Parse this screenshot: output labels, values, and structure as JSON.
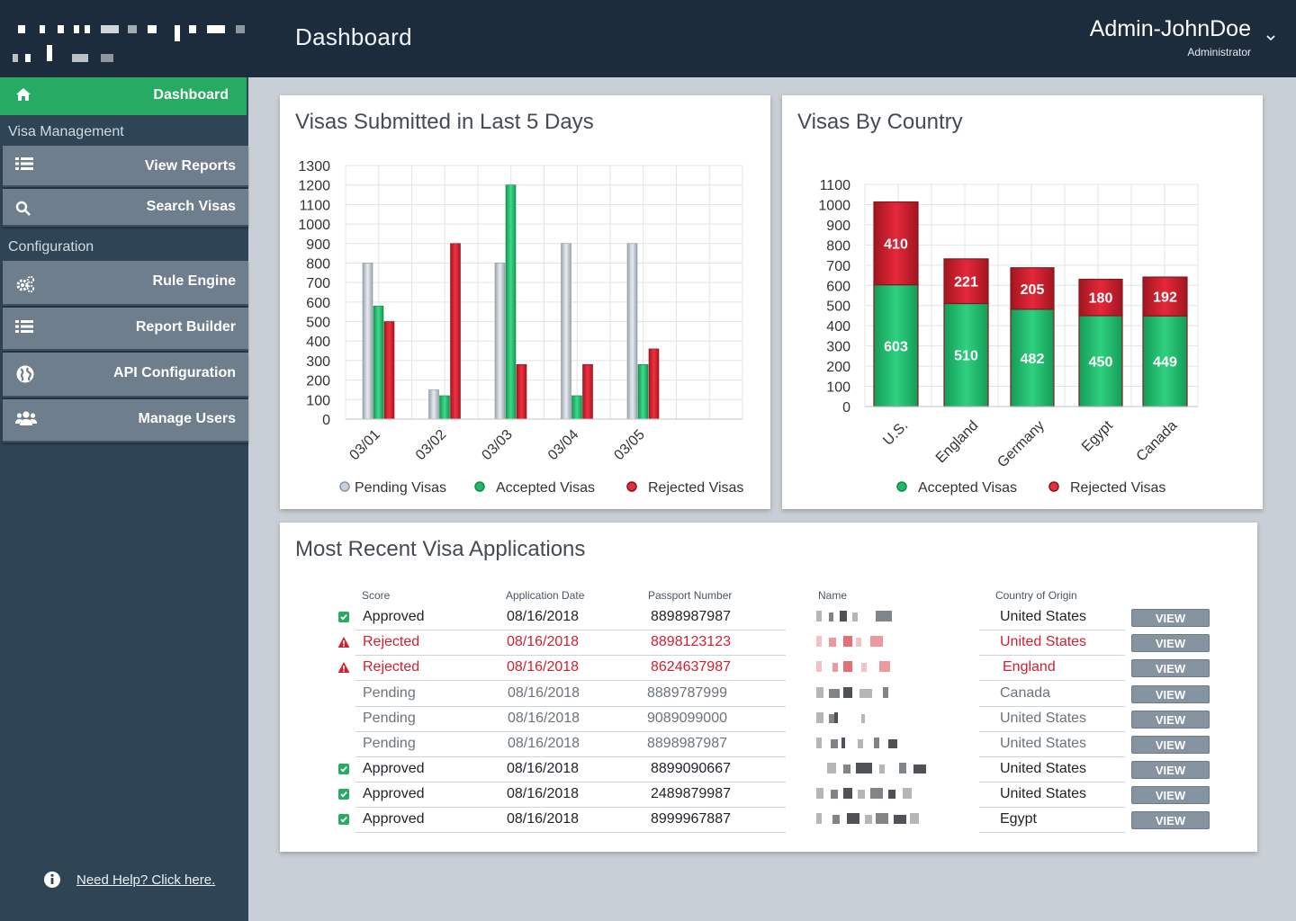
{
  "header": {
    "title": "Dashboard",
    "user_name": "Admin-JohnDoe",
    "user_role": "Administrator"
  },
  "sidebar": {
    "active": {
      "label": "Dashboard",
      "icon": "home-icon"
    },
    "sections": [
      {
        "label": "Visa Management"
      },
      {
        "label": "Configuration"
      }
    ],
    "items": [
      {
        "label": "View Reports",
        "icon": "list-icon"
      },
      {
        "label": "Search Visas",
        "icon": "search-icon"
      },
      {
        "label": "Rule Engine",
        "icon": "gears-icon"
      },
      {
        "label": "Report Builder",
        "icon": "list-icon"
      },
      {
        "label": "API Configuration",
        "icon": "globe-icon"
      },
      {
        "label": "Manage Users",
        "icon": "users-icon"
      }
    ],
    "help": "Need Help? Click here."
  },
  "colors": {
    "pending": "#c9d0d8",
    "accepted": "#22b86b",
    "rejected": "#d3202e",
    "header": "#1c2c3c",
    "sidebar": "#2f4454",
    "active_nav": "#27ab62"
  },
  "chart_data": [
    {
      "type": "bar",
      "title": "Visas Submitted in Last 5 Days",
      "categories": [
        "03/01",
        "03/02",
        "03/03",
        "03/04",
        "03/05"
      ],
      "series": [
        {
          "name": "Pending Visas",
          "values": [
            800,
            150,
            800,
            900,
            900
          ]
        },
        {
          "name": "Accepted Visas",
          "values": [
            580,
            120,
            1200,
            120,
            280
          ]
        },
        {
          "name": "Rejected Visas",
          "values": [
            500,
            900,
            280,
            280,
            360
          ]
        }
      ],
      "ylim": [
        0,
        1300
      ],
      "yticks": [
        0,
        100,
        200,
        300,
        400,
        500,
        600,
        700,
        800,
        900,
        1000,
        1100,
        1200,
        1300
      ],
      "grid": true,
      "legend": "bottom"
    },
    {
      "type": "bar",
      "stacked": true,
      "title": "Visas By Country",
      "categories": [
        "U.S.",
        "England",
        "Germany",
        "Egypt",
        "Canada"
      ],
      "series": [
        {
          "name": "Accepted Visas",
          "values": [
            603,
            510,
            482,
            450,
            449
          ]
        },
        {
          "name": "Rejected Visas",
          "values": [
            410,
            221,
            205,
            180,
            192
          ]
        }
      ],
      "ylim": [
        0,
        1100
      ],
      "yticks": [
        0,
        100,
        200,
        300,
        400,
        500,
        600,
        700,
        800,
        900,
        1000,
        1100
      ],
      "grid": true,
      "legend": "bottom"
    }
  ],
  "recent": {
    "title": "Most Recent Visa Applications",
    "columns": [
      "Score",
      "Application Date",
      "Passport Number",
      "Name",
      "Country of Origin"
    ],
    "view_label": "VIEW",
    "rows": [
      {
        "score": "Approved",
        "date": "08/16/2018",
        "passport": "8898987987",
        "country": "United States",
        "status": "approved"
      },
      {
        "score": "Rejected",
        "date": "08/16/2018",
        "passport": "8898123123",
        "country": "United States",
        "status": "rejected"
      },
      {
        "score": "Rejected",
        "date": "08/16/2018",
        "passport": "8624637987",
        "country": "England",
        "status": "rejected"
      },
      {
        "score": "Pending",
        "date": "08/16/2018",
        "passport": "8889787999",
        "country": "Canada",
        "status": "pending"
      },
      {
        "score": "Pending",
        "date": "08/16/2018",
        "passport": "9089099000",
        "country": "United States",
        "status": "pending"
      },
      {
        "score": "Pending",
        "date": "08/16/2018",
        "passport": "8898987987",
        "country": "United States",
        "status": "pending"
      },
      {
        "score": "Approved",
        "date": "08/16/2018",
        "passport": "8899090667",
        "country": "United States",
        "status": "approved"
      },
      {
        "score": "Approved",
        "date": "08/16/2018",
        "passport": "2489879987",
        "country": "United States",
        "status": "approved"
      },
      {
        "score": "Approved",
        "date": "08/16/2018",
        "passport": "8999967887",
        "country": "Egypt",
        "status": "approved"
      }
    ]
  }
}
